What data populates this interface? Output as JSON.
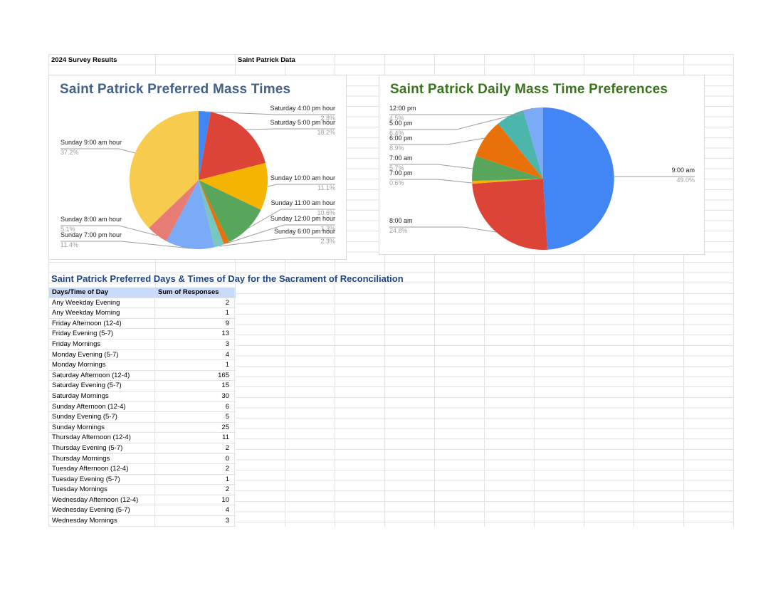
{
  "sheet": {
    "a1": "2024 Survey Results",
    "c1": "Saint Patrick Data"
  },
  "chart_data": [
    {
      "type": "pie",
      "title": "Saint Patrick Preferred Mass Times",
      "title_color": "#44618b",
      "legend_position": "labeled-callouts",
      "slices": [
        {
          "label": "Saturday 4:00 pm hour",
          "pct": 2.8,
          "color": "#4285f4"
        },
        {
          "label": "Saturday 5:00 pm hour",
          "pct": 18.2,
          "color": "#db4437"
        },
        {
          "label": "Sunday 10:00 am hour",
          "pct": 11.1,
          "color": "#f4b400"
        },
        {
          "label": "Sunday 11:00 am hour",
          "pct": 10.6,
          "color": "#58a55c"
        },
        {
          "label": "Sunday 12:00 pm hour",
          "pct": 1.3,
          "color": "#e8710a"
        },
        {
          "label": "Sunday 6:00 pm hour",
          "pct": 2.3,
          "color": "#76c7c0"
        },
        {
          "label": "Sunday 7:00 pm hour",
          "pct": 11.4,
          "color": "#7baaf7"
        },
        {
          "label": "Sunday 8:00 am hour",
          "pct": 5.1,
          "color": "#e67c73"
        },
        {
          "label": "Sunday 9:00 am hour",
          "pct": 37.2,
          "color": "#f7cb4d"
        }
      ]
    },
    {
      "type": "pie",
      "title": "Saint Patrick Daily Mass Time Preferences",
      "title_color": "#38761d",
      "legend_position": "labeled-callouts",
      "slices": [
        {
          "label": "9:00 am",
          "pct": 49.0,
          "color": "#4285f4"
        },
        {
          "label": "8:00 am",
          "pct": 24.8,
          "color": "#db4437"
        },
        {
          "label": "7:00 pm",
          "pct": 0.6,
          "color": "#f4b400"
        },
        {
          "label": "7:00 am",
          "pct": 5.7,
          "color": "#58a55c"
        },
        {
          "label": "6:00 pm",
          "pct": 8.9,
          "color": "#e8710a"
        },
        {
          "label": "5:00 pm",
          "pct": 6.4,
          "color": "#4db6ac"
        },
        {
          "label": "12:00 pm",
          "pct": 4.5,
          "color": "#7baaf7"
        }
      ]
    }
  ],
  "reconciliation": {
    "heading": "Saint Patrick Preferred Days & Times of Day for the Sacrament of Reconciliation",
    "heading_color": "#1c4587",
    "header_bg": "#c9daf8",
    "columns": [
      "Days/Time of Day",
      "Sum of Responses"
    ],
    "rows": [
      [
        "Any Weekday Evening",
        2
      ],
      [
        "Any Weekday Morning",
        1
      ],
      [
        "Friday Afternoon (12-4)",
        9
      ],
      [
        "Friday Evening (5-7)",
        13
      ],
      [
        "Friday Mornings",
        3
      ],
      [
        "Monday Evening (5-7)",
        4
      ],
      [
        "Monday Mornings",
        1
      ],
      [
        "Saturday Afternoon (12-4)",
        165
      ],
      [
        "Saturday Evening (5-7)",
        15
      ],
      [
        "Saturday Mornings",
        30
      ],
      [
        "Sunday Afternoon (12-4)",
        6
      ],
      [
        "Sunday Evening (5-7)",
        5
      ],
      [
        "Sunday Mornings",
        25
      ],
      [
        "Thursday Afternoon (12-4)",
        11
      ],
      [
        "Thursday Evening (5-7)",
        2
      ],
      [
        "Thursday Mornings",
        0
      ],
      [
        "Tuesday Afternoon (12-4)",
        2
      ],
      [
        "Tuesday Evening (5-7)",
        1
      ],
      [
        "Tuesday Mornings",
        2
      ],
      [
        "Wednesday Afternoon (12-4)",
        10
      ],
      [
        "Wednesday Evening (5-7)",
        4
      ],
      [
        "Wednesday Mornings",
        3
      ]
    ]
  }
}
